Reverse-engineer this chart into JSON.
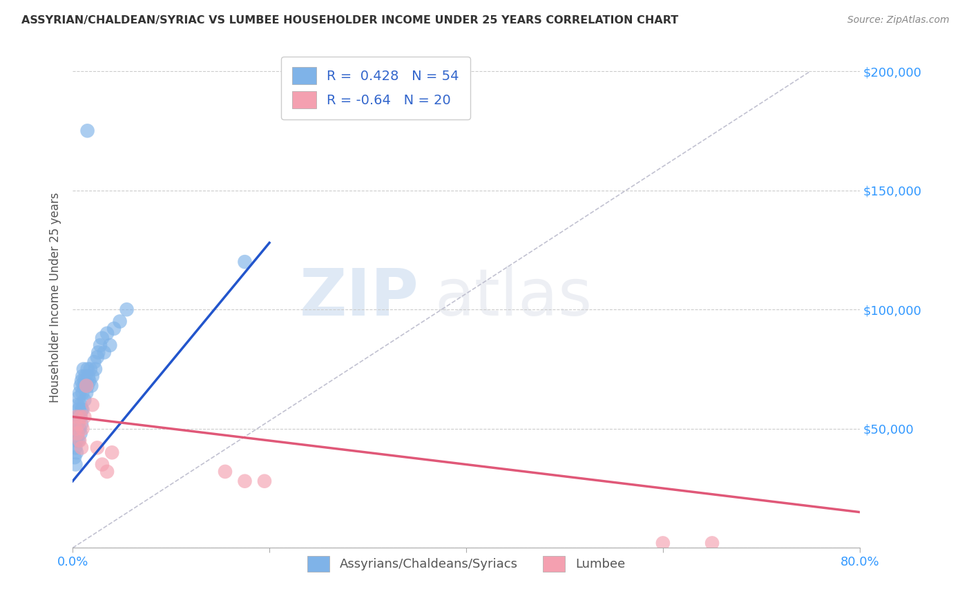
{
  "title": "ASSYRIAN/CHALDEAN/SYRIAC VS LUMBEE HOUSEHOLDER INCOME UNDER 25 YEARS CORRELATION CHART",
  "source": "Source: ZipAtlas.com",
  "ylabel": "Householder Income Under 25 years",
  "xlim": [
    0.0,
    0.8
  ],
  "ylim": [
    0,
    210000
  ],
  "yticks": [
    0,
    50000,
    100000,
    150000,
    200000
  ],
  "xticks": [
    0.0,
    0.2,
    0.4,
    0.6,
    0.8
  ],
  "blue_R": 0.428,
  "blue_N": 54,
  "pink_R": -0.64,
  "pink_N": 20,
  "blue_color": "#7FB3E8",
  "pink_color": "#F4A0B0",
  "blue_line_color": "#2255CC",
  "pink_line_color": "#E05878",
  "ref_line_color": "#BBBBCC",
  "background_color": "#FFFFFF",
  "grid_color": "#CCCCCC",
  "watermark_zip": "ZIP",
  "watermark_atlas": "atlas",
  "legend_label_blue": "Assyrians/Chaldeans/Syriacs",
  "legend_label_pink": "Lumbee",
  "blue_x": [
    0.002,
    0.003,
    0.003,
    0.004,
    0.004,
    0.004,
    0.005,
    0.005,
    0.005,
    0.005,
    0.006,
    0.006,
    0.006,
    0.007,
    0.007,
    0.007,
    0.008,
    0.008,
    0.008,
    0.008,
    0.009,
    0.009,
    0.009,
    0.01,
    0.01,
    0.01,
    0.011,
    0.011,
    0.012,
    0.012,
    0.013,
    0.013,
    0.014,
    0.015,
    0.015,
    0.016,
    0.017,
    0.018,
    0.019,
    0.02,
    0.022,
    0.023,
    0.025,
    0.026,
    0.028,
    0.03,
    0.032,
    0.035,
    0.038,
    0.042,
    0.048,
    0.055,
    0.175,
    0.015
  ],
  "blue_y": [
    38000,
    35000,
    42000,
    45000,
    40000,
    50000,
    55000,
    60000,
    48000,
    52000,
    58000,
    63000,
    45000,
    65000,
    55000,
    50000,
    68000,
    60000,
    55000,
    48000,
    70000,
    58000,
    52000,
    72000,
    65000,
    58000,
    68000,
    75000,
    70000,
    62000,
    68000,
    72000,
    65000,
    75000,
    68000,
    72000,
    70000,
    75000,
    68000,
    72000,
    78000,
    75000,
    80000,
    82000,
    85000,
    88000,
    82000,
    90000,
    85000,
    92000,
    95000,
    100000,
    120000,
    175000
  ],
  "pink_x": [
    0.003,
    0.004,
    0.005,
    0.006,
    0.007,
    0.008,
    0.009,
    0.01,
    0.012,
    0.014,
    0.02,
    0.025,
    0.03,
    0.035,
    0.04,
    0.155,
    0.175,
    0.195,
    0.6,
    0.65
  ],
  "pink_y": [
    50000,
    55000,
    48000,
    52000,
    45000,
    55000,
    42000,
    50000,
    55000,
    68000,
    60000,
    42000,
    35000,
    32000,
    40000,
    32000,
    28000,
    28000,
    2000,
    2000
  ],
  "blue_line_x": [
    0.0,
    0.2
  ],
  "blue_line_y": [
    28000,
    128000
  ],
  "pink_line_x": [
    0.0,
    0.8
  ],
  "pink_line_y": [
    55000,
    15000
  ],
  "ref_line_x": [
    0.0,
    0.75
  ],
  "ref_line_y": [
    0,
    200000
  ]
}
